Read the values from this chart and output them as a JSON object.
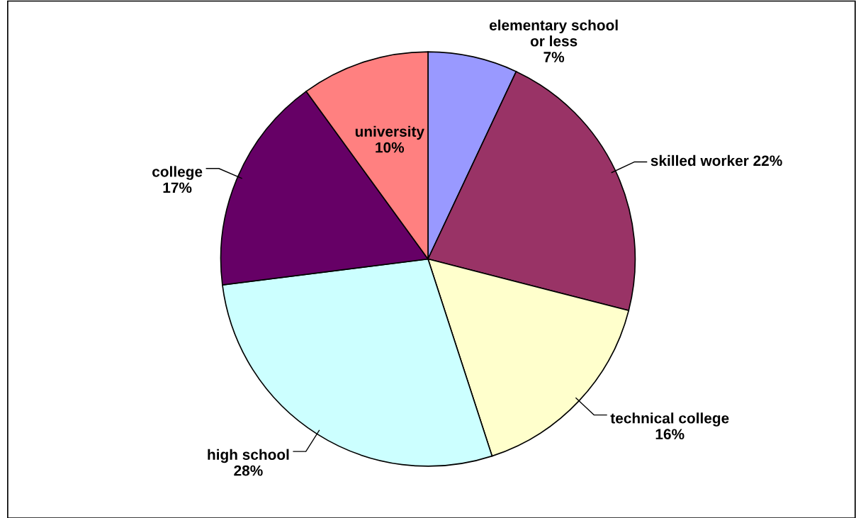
{
  "chart_data": {
    "type": "pie",
    "categories": [
      "elementary school or less",
      "skilled worker",
      "technical college",
      "high school",
      "college",
      "university"
    ],
    "values": [
      7,
      22,
      16,
      28,
      17,
      10
    ],
    "colors": [
      "#9999ff",
      "#993366",
      "#ffffcc",
      "#ccffff",
      "#660066",
      "#ff8080"
    ],
    "value_labels": [
      "7%",
      "22%",
      "16%",
      "28%",
      "17%",
      "10%"
    ]
  }
}
